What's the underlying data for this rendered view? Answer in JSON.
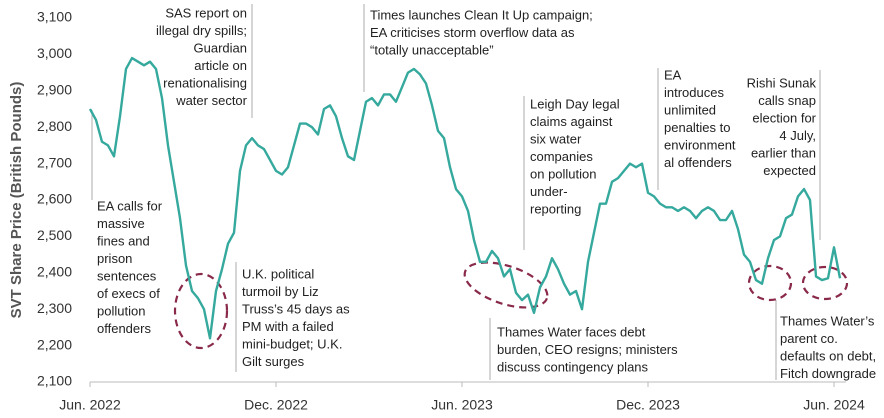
{
  "chart_data": {
    "type": "line",
    "y_label": "SVT Share Price (British Pounds)",
    "categories": [
      "Jun. 2022",
      null,
      null,
      null,
      null,
      null,
      null,
      null,
      null,
      null,
      null,
      null,
      null,
      null,
      null,
      null,
      null,
      null,
      null,
      null,
      null,
      null,
      null,
      null,
      null,
      null,
      null,
      null,
      null,
      null,
      null,
      "Dec. 2022",
      null,
      null,
      null,
      null,
      null,
      null,
      null,
      null,
      null,
      null,
      null,
      null,
      null,
      null,
      null,
      null,
      null,
      null,
      null,
      null,
      null,
      null,
      null,
      null,
      null,
      null,
      null,
      null,
      null,
      null,
      "Jun. 2023",
      null,
      null,
      null,
      null,
      null,
      null,
      null,
      null,
      null,
      null,
      null,
      null,
      null,
      null,
      null,
      null,
      null,
      null,
      null,
      null,
      null,
      null,
      null,
      null,
      null,
      null,
      null,
      null,
      null,
      null,
      "Dec. 2023",
      null,
      null,
      null,
      null,
      null,
      null,
      null,
      null,
      null,
      null,
      null,
      null,
      null,
      null,
      null,
      null,
      null,
      null,
      null,
      null,
      null,
      null,
      null,
      null,
      null,
      null,
      null,
      null,
      null,
      null,
      "Jun. 2024",
      null
    ],
    "series": [
      {
        "name": "SVT",
        "color": "#35a99d",
        "values": [
          2850,
          2820,
          2760,
          2750,
          2720,
          2830,
          2960,
          2990,
          2980,
          2970,
          2980,
          2960,
          2880,
          2750,
          2650,
          2550,
          2420,
          2350,
          2330,
          2300,
          2220,
          2350,
          2410,
          2480,
          2510,
          2680,
          2750,
          2770,
          2750,
          2740,
          2710,
          2680,
          2670,
          2690,
          2750,
          2810,
          2810,
          2800,
          2780,
          2850,
          2860,
          2830,
          2770,
          2720,
          2710,
          2790,
          2870,
          2880,
          2860,
          2890,
          2890,
          2870,
          2910,
          2950,
          2960,
          2945,
          2920,
          2860,
          2790,
          2770,
          2690,
          2630,
          2610,
          2570,
          2490,
          2430,
          2430,
          2460,
          2440,
          2390,
          2410,
          2345,
          2325,
          2340,
          2290,
          2360,
          2390,
          2440,
          2410,
          2370,
          2340,
          2350,
          2300,
          2430,
          2510,
          2590,
          2590,
          2650,
          2660,
          2680,
          2700,
          2690,
          2700,
          2620,
          2610,
          2590,
          2580,
          2580,
          2570,
          2580,
          2570,
          2550,
          2570,
          2580,
          2570,
          2545,
          2545,
          2570,
          2520,
          2450,
          2430,
          2380,
          2370,
          2440,
          2490,
          2500,
          2550,
          2560,
          2610,
          2630,
          2600,
          2390,
          2380,
          2385,
          2470,
          2385
        ]
      }
    ],
    "ylim": [
      2100,
      3100
    ],
    "yticks": [
      {
        "value": 2100,
        "label": "2,100"
      },
      {
        "value": 2200,
        "label": "2,200"
      },
      {
        "value": 2300,
        "label": "2,300"
      },
      {
        "value": 2400,
        "label": "2,400"
      },
      {
        "value": 2500,
        "label": "2,500"
      },
      {
        "value": 2600,
        "label": "2,600"
      },
      {
        "value": 2700,
        "label": "2,700"
      },
      {
        "value": 2800,
        "label": "2,800"
      },
      {
        "value": 2900,
        "label": "2,900"
      },
      {
        "value": 3000,
        "label": "3,000"
      },
      {
        "value": 3100,
        "label": "3,100"
      }
    ],
    "grid": false,
    "annotations": [
      {
        "lines": [
          "SAS report on",
          "illegal dry spills;",
          "Guardian",
          "article on",
          "renationalising",
          "water sector"
        ]
      },
      {
        "lines": [
          "Times launches Clean It Up campaign;",
          "EA criticises storm overflow data as",
          "“totally unacceptable”"
        ]
      },
      {
        "lines": [
          "Leigh Day legal",
          "claims against",
          "six water",
          "companies",
          "on pollution",
          "under-",
          "reporting"
        ]
      },
      {
        "lines": [
          "EA",
          "introduces",
          "unlimited",
          "penalties to",
          "environment",
          "al offenders"
        ]
      },
      {
        "lines": [
          "Rishi Sunak",
          "calls snap",
          "election for",
          "4 July,",
          "earlier than",
          "expected"
        ]
      },
      {
        "lines": [
          "EA calls for",
          "massive",
          "fines and",
          "prison",
          "sentences",
          "of execs of",
          "pollution",
          "offenders"
        ]
      },
      {
        "lines": [
          "U.K. political",
          "turmoil by Liz",
          "Truss’s 45 days as",
          "PM with a failed",
          "mini-budget; U.K.",
          "Gilt surges"
        ]
      },
      {
        "lines": [
          "Thames Water faces debt",
          "burden, CEO resigns; ministers",
          "discuss contingency plans"
        ]
      },
      {
        "lines": [
          "Thames Water’s",
          "parent co.",
          "defaults on debt,",
          "Fitch downgrade"
        ]
      }
    ]
  }
}
